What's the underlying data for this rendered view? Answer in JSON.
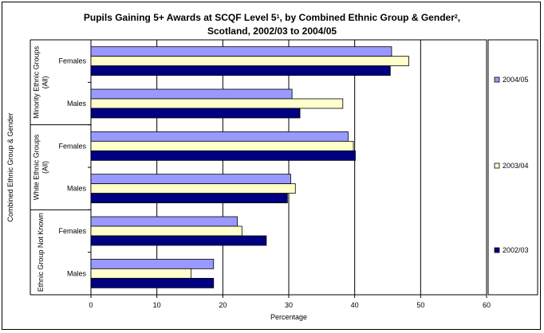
{
  "chart_data": {
    "type": "bar",
    "orientation": "horizontal",
    "title_lines": [
      [
        "Pupils Gaining 5+ Awards at SCQF Level 5",
        "1",
        ", by Combined Ethnic Group & Gender",
        "2",
        ","
      ],
      [
        "Scotland, 2002/03 to 2004/05"
      ]
    ],
    "xlabel": "Percentage",
    "ylabel": "Combined Ethnic Group & Gender",
    "xlim": [
      0,
      60
    ],
    "xticks": [
      "0",
      "10",
      "20",
      "30",
      "40",
      "50",
      "60"
    ],
    "grid": true,
    "legend_position": "right",
    "groups": [
      {
        "label": "Minority Ethnic Groups (All)",
        "label_lines": [
          "Minority Ethnic Groups",
          "(All)"
        ]
      },
      {
        "label": "White Ethnic Groups (All)",
        "label_lines": [
          "White Ethnic Groups",
          "(All)"
        ]
      },
      {
        "label": "Ethnic Group Not Known",
        "label_lines": [
          "Ethnic Group Not Known"
        ]
      }
    ],
    "categories": [
      "Females",
      "Males",
      "Females",
      "Males",
      "Females",
      "Males"
    ],
    "series": [
      {
        "name": "2004/05",
        "color": "#9999ff",
        "values": [
          45.6,
          30.5,
          39.0,
          30.3,
          22.2,
          18.6
        ]
      },
      {
        "name": "2003/04",
        "color": "#ffffcc",
        "values": [
          48.2,
          38.2,
          39.8,
          31.0,
          22.9,
          15.2
        ]
      },
      {
        "name": "2002/03",
        "color": "#000080",
        "values": [
          45.4,
          31.7,
          40.1,
          29.8,
          26.6,
          18.6
        ]
      }
    ]
  }
}
